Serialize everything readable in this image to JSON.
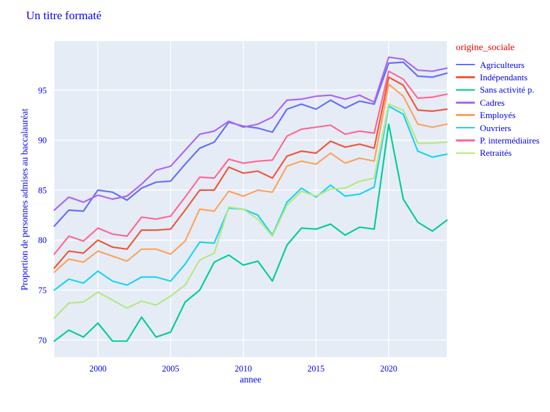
{
  "title": "Un titre formaté",
  "colors": {
    "text_blue": "#0000f0",
    "legend_title_red": "#f00000",
    "figure_bg": "#ffffff",
    "plot_bg": "#e5ecf6",
    "grid": "#ffffff"
  },
  "chart_data": {
    "type": "line",
    "title": "Un titre formaté",
    "xlabel": "annee",
    "ylabel": "Proportion de personnes admises au baccalauréat",
    "legend_title": "origine_sociale",
    "legend_position": "right",
    "grid": true,
    "plot_bg": "#e5ecf6",
    "grid_color": "#ffffff",
    "xlim": [
      1997,
      2024
    ],
    "ylim": [
      68.3,
      99.9
    ],
    "xticks": [
      2000,
      2005,
      2010,
      2015,
      2020
    ],
    "yticks": [
      70,
      75,
      80,
      85,
      90,
      95
    ],
    "x": [
      1997,
      1998,
      1999,
      2000,
      2001,
      2002,
      2003,
      2004,
      2005,
      2006,
      2007,
      2008,
      2009,
      2010,
      2011,
      2012,
      2013,
      2014,
      2015,
      2016,
      2017,
      2018,
      2019,
      2020,
      2021,
      2022,
      2023,
      2024
    ],
    "series": [
      {
        "name": "Agriculteurs",
        "color": "#636EFA",
        "values": [
          81.4,
          83.0,
          82.9,
          85.0,
          84.8,
          84.0,
          85.2,
          85.8,
          85.9,
          87.6,
          89.2,
          89.8,
          91.8,
          91.4,
          91.2,
          90.8,
          93.1,
          93.6,
          93.1,
          94.0,
          93.2,
          93.9,
          93.6,
          97.7,
          97.8,
          96.4,
          96.3,
          96.7
        ]
      },
      {
        "name": "Indépendants",
        "color": "#EF553B",
        "values": [
          77.2,
          78.9,
          78.7,
          80.0,
          79.3,
          79.1,
          81.0,
          81.0,
          81.1,
          83.0,
          85.0,
          85.0,
          87.3,
          86.7,
          86.9,
          86.2,
          88.4,
          88.9,
          88.7,
          89.9,
          89.3,
          89.6,
          89.2,
          96.3,
          95.5,
          93.0,
          92.9,
          93.1
        ]
      },
      {
        "name": "Sans activité p.",
        "color": "#00CC96",
        "values": [
          69.9,
          71.0,
          70.3,
          71.7,
          69.9,
          69.9,
          72.3,
          70.3,
          70.8,
          73.8,
          75.0,
          77.8,
          78.5,
          77.5,
          77.9,
          75.9,
          79.5,
          81.2,
          81.1,
          81.6,
          80.5,
          81.3,
          81.1,
          91.6,
          84.1,
          81.8,
          80.9,
          82.0
        ]
      },
      {
        "name": "Cadres",
        "color": "#AB63FA",
        "values": [
          83.0,
          84.3,
          83.8,
          84.5,
          84.1,
          84.4,
          85.6,
          87.0,
          87.4,
          89.0,
          90.6,
          90.9,
          91.9,
          91.3,
          91.6,
          92.3,
          94.0,
          94.1,
          94.4,
          94.5,
          94.1,
          94.5,
          93.8,
          98.3,
          98.1,
          97.0,
          96.9,
          97.2
        ]
      },
      {
        "name": "Employés",
        "color": "#FFA15A",
        "values": [
          76.8,
          78.1,
          77.8,
          78.9,
          78.4,
          77.9,
          79.1,
          79.1,
          78.6,
          79.9,
          83.1,
          82.9,
          84.9,
          84.4,
          85.0,
          84.8,
          87.4,
          87.9,
          87.6,
          88.7,
          87.7,
          88.2,
          87.9,
          95.6,
          94.4,
          91.6,
          91.3,
          91.6
        ]
      },
      {
        "name": "Ouvriers",
        "color": "#19D3F3",
        "values": [
          75.0,
          76.1,
          75.7,
          76.9,
          75.9,
          75.5,
          76.3,
          76.3,
          75.9,
          77.6,
          79.8,
          79.7,
          83.2,
          83.1,
          82.5,
          80.5,
          83.8,
          85.2,
          84.3,
          85.5,
          84.4,
          84.6,
          85.3,
          93.4,
          92.6,
          88.9,
          88.3,
          88.6
        ]
      },
      {
        "name": "P. intermédiaires",
        "color": "#FF6692",
        "values": [
          78.6,
          80.4,
          79.9,
          81.2,
          80.6,
          80.4,
          82.3,
          82.1,
          82.4,
          84.3,
          86.3,
          86.2,
          88.1,
          87.7,
          87.9,
          88.0,
          90.4,
          91.1,
          91.3,
          91.5,
          90.6,
          90.9,
          90.7,
          96.9,
          96.1,
          94.2,
          94.3,
          94.6
        ]
      },
      {
        "name": "Retraités",
        "color": "#B6E880",
        "values": [
          72.2,
          73.7,
          73.8,
          74.8,
          74.0,
          73.2,
          73.9,
          73.5,
          74.4,
          75.5,
          78.0,
          78.7,
          83.3,
          83.1,
          82.1,
          80.4,
          83.5,
          84.9,
          84.4,
          85.1,
          85.2,
          85.9,
          86.2,
          93.6,
          93.0,
          89.7,
          89.7,
          89.8
        ]
      }
    ]
  }
}
